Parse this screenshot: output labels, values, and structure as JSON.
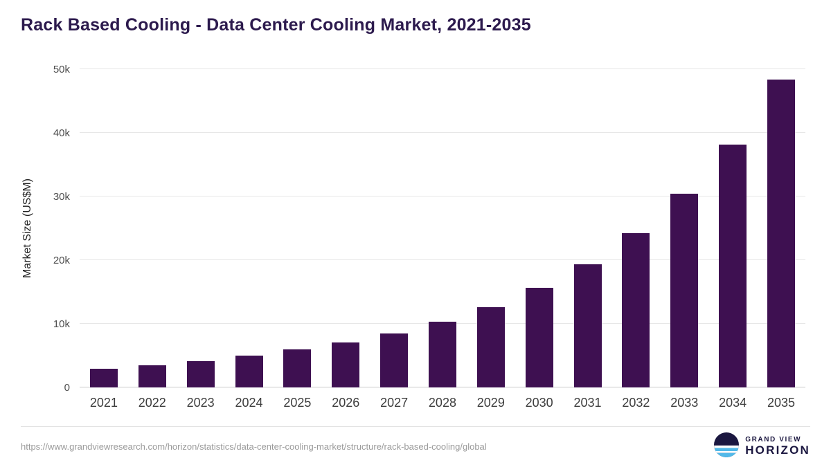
{
  "title": "Rack Based Cooling - Data Center Cooling Market, 2021-2035",
  "source_url": "https://www.grandviewresearch.com/horizon/statistics/data-center-cooling-market/structure/rack-based-cooling/global",
  "logo": {
    "line1": "GRAND VIEW",
    "line2": "HORIZON"
  },
  "colors": {
    "bar": "#3E1051",
    "title": "#2C1A4D",
    "logo_navy": "#1b1740",
    "logo_teal": "#52b9e9"
  },
  "chart_data": {
    "type": "bar",
    "title": "Rack Based Cooling - Data Center Cooling Market, 2021-2035",
    "categories": [
      "2021",
      "2022",
      "2023",
      "2024",
      "2025",
      "2026",
      "2027",
      "2028",
      "2029",
      "2030",
      "2031",
      "2032",
      "2033",
      "2034",
      "2035"
    ],
    "values": [
      2950,
      3450,
      4100,
      4950,
      5950,
      7100,
      8450,
      10300,
      12600,
      15600,
      19400,
      24200,
      30400,
      38200,
      48400
    ],
    "xlabel": "",
    "ylabel": "Market Size (US$M)",
    "ylim": [
      0,
      50000
    ],
    "y_ticks": [
      "0",
      "10k",
      "20k",
      "30k",
      "40k",
      "50k"
    ],
    "grid": "horizontal",
    "legend": "none"
  }
}
